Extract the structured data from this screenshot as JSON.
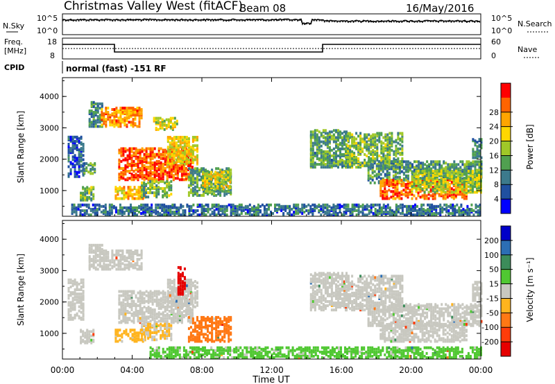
{
  "header": {
    "station": "Christmas Valley West (fitACF)",
    "beam": "Beam 08",
    "date": "16/May/2016"
  },
  "noise_panel": {
    "label": "N.Sky",
    "y_top": "10^5",
    "y_bottom": "10^0",
    "right_label": "N.Search",
    "right_top": "10^5",
    "right_bottom": "10^0"
  },
  "freq_panel": {
    "label_line1": "Freq.",
    "label_line2": "[MHz]",
    "y_top": "18",
    "y_bottom": "8",
    "right_label": "Nave",
    "right_top": "60",
    "right_bottom": "0"
  },
  "cpid_panel": {
    "label": "CPID",
    "text": "normal (fast) -151 RF"
  },
  "chart_data": [
    {
      "type": "heatmap",
      "title": "Power",
      "ylabel": "Slant Range [km]",
      "colorbar_label": "Power [dB]",
      "x_ticks": [
        "00:00",
        "04:00",
        "08:00",
        "12:00",
        "16:00",
        "20:00",
        "00:00"
      ],
      "x_range_hours": [
        0,
        24
      ],
      "y_ticks": [
        1000,
        2000,
        3000,
        4000
      ],
      "ylim": [
        180,
        4600
      ],
      "colorbar_ticks": [
        "4",
        "8",
        "12",
        "16",
        "20",
        "24",
        "28"
      ],
      "colorscale": [
        "#0000ff",
        "#2050a0",
        "#3c7a8c",
        "#50a050",
        "#a0c828",
        "#ffd700",
        "#ffa500",
        "#ff6400",
        "#ff0000"
      ],
      "cmap_range": [
        0,
        32
      ],
      "regions": [
        {
          "t": [
            0.3,
            1.2
          ],
          "r": [
            1400,
            2700
          ],
          "v": 6
        },
        {
          "t": [
            1.0,
            1.8
          ],
          "r": [
            650,
            1100
          ],
          "v": 14
        },
        {
          "t": [
            1.2,
            1.9
          ],
          "r": [
            1500,
            1900
          ],
          "v": 12
        },
        {
          "t": [
            1.5,
            2.3
          ],
          "r": [
            3000,
            3800
          ],
          "v": 10
        },
        {
          "t": [
            2.2,
            4.6
          ],
          "r": [
            3000,
            3600
          ],
          "v": 24
        },
        {
          "t": [
            3.2,
            7.5
          ],
          "r": [
            1300,
            2300
          ],
          "v": 27
        },
        {
          "t": [
            3.0,
            4.8
          ],
          "r": [
            700,
            1100
          ],
          "v": 22
        },
        {
          "t": [
            4.5,
            6.2
          ],
          "r": [
            750,
            1250
          ],
          "v": 14
        },
        {
          "t": [
            5.2,
            6.6
          ],
          "r": [
            2900,
            3300
          ],
          "v": 18
        },
        {
          "t": [
            6.0,
            7.8
          ],
          "r": [
            1800,
            2700
          ],
          "v": 20
        },
        {
          "t": [
            7.2,
            9.6
          ],
          "r": [
            800,
            1700
          ],
          "v": 12
        },
        {
          "t": [
            8.0,
            9.6
          ],
          "r": [
            1000,
            1550
          ],
          "v": 18
        },
        {
          "t": [
            14.2,
            16.4
          ],
          "r": [
            1700,
            2900
          ],
          "v": 12
        },
        {
          "t": [
            16.2,
            19.5
          ],
          "r": [
            1700,
            2800
          ],
          "v": 14
        },
        {
          "t": [
            17.5,
            24.0
          ],
          "r": [
            1200,
            1900
          ],
          "v": 11
        },
        {
          "t": [
            18.2,
            23.2
          ],
          "r": [
            700,
            1300
          ],
          "v": 26
        },
        {
          "t": [
            20.0,
            24.0
          ],
          "r": [
            900,
            1600
          ],
          "v": 16
        },
        {
          "t": [
            23.5,
            24.0
          ],
          "r": [
            2000,
            2600
          ],
          "v": 10
        },
        {
          "t": [
            0.5,
            24.0
          ],
          "r": [
            180,
            500
          ],
          "v": 8
        }
      ]
    },
    {
      "type": "heatmap",
      "title": "Velocity",
      "ylabel": "Slant Range [km]",
      "colorbar_label": "Velocity [m s⁻¹]",
      "x_ticks": [
        "00:00",
        "04:00",
        "08:00",
        "12:00",
        "16:00",
        "20:00",
        "00:00"
      ],
      "x_range_hours": [
        0,
        24
      ],
      "y_ticks": [
        1000,
        2000,
        3000,
        4000
      ],
      "ylim": [
        180,
        4600
      ],
      "xlabel": "Time UT",
      "colorbar_ticks": [
        "200",
        "100",
        "50",
        "15",
        "-15",
        "-50",
        "-100",
        "-200"
      ],
      "colorscale": [
        "#0000c8",
        "#2c6eb4",
        "#3c8c5a",
        "#50c832",
        "#c8c8c0",
        "#ffb41e",
        "#ff7814",
        "#ff3c0a",
        "#e60000"
      ],
      "cmap_range": [
        250,
        -250
      ],
      "regions": [
        {
          "t": [
            0.3,
            1.2
          ],
          "r": [
            1400,
            2700
          ],
          "v": 0
        },
        {
          "t": [
            1.0,
            1.8
          ],
          "r": [
            650,
            1100
          ],
          "v": 0
        },
        {
          "t": [
            1.5,
            2.3
          ],
          "r": [
            3000,
            3800
          ],
          "v": 0
        },
        {
          "t": [
            2.2,
            4.6
          ],
          "r": [
            3000,
            3600
          ],
          "v": 0
        },
        {
          "t": [
            3.2,
            7.5
          ],
          "r": [
            1300,
            2300
          ],
          "v": 0
        },
        {
          "t": [
            3.0,
            4.8
          ],
          "r": [
            700,
            1100
          ],
          "v": -40
        },
        {
          "t": [
            4.5,
            6.2
          ],
          "r": [
            750,
            1250
          ],
          "v": -30
        },
        {
          "t": [
            6.0,
            7.8
          ],
          "r": [
            1800,
            2700
          ],
          "v": 0
        },
        {
          "t": [
            6.6,
            7.0
          ],
          "r": [
            2200,
            3100
          ],
          "v": -220
        },
        {
          "t": [
            7.2,
            9.6
          ],
          "r": [
            700,
            1500
          ],
          "v": -110
        },
        {
          "t": [
            14.2,
            16.4
          ],
          "r": [
            1700,
            2900
          ],
          "v": 0
        },
        {
          "t": [
            16.2,
            19.5
          ],
          "r": [
            1700,
            2800
          ],
          "v": 0
        },
        {
          "t": [
            17.5,
            24.0
          ],
          "r": [
            1200,
            1900
          ],
          "v": 0
        },
        {
          "t": [
            18.2,
            23.2
          ],
          "r": [
            700,
            1300
          ],
          "v": 0
        },
        {
          "t": [
            23.5,
            24.0
          ],
          "r": [
            2000,
            2600
          ],
          "v": 0
        },
        {
          "t": [
            5.0,
            24.0
          ],
          "r": [
            180,
            500
          ],
          "v": 40
        }
      ]
    }
  ]
}
